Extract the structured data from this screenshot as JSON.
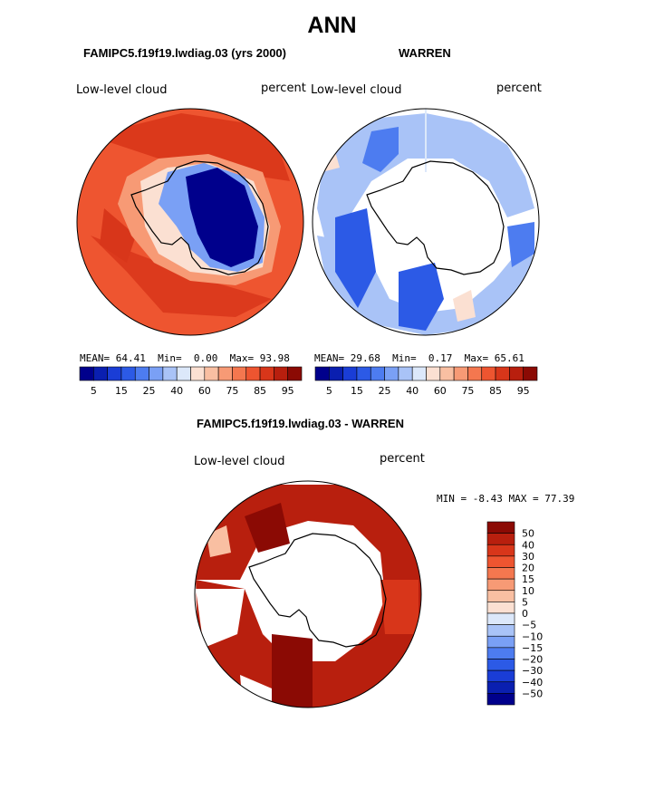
{
  "figure_title": "ANN",
  "chart_data": [
    {
      "type": "heatmap",
      "title": "FAMIPC5.f19f19.lwdiag.03 (yrs 2000)",
      "variable_label": "Low-level cloud",
      "units_label": "percent",
      "stats": {
        "mean_label": "MEAN=",
        "mean": "64.41",
        "min_label": "Min=",
        "min": "0.00",
        "max_label": "Max=",
        "max": "93.98"
      },
      "colorbar_levels": [
        5,
        10,
        15,
        20,
        25,
        30,
        40,
        50,
        60,
        65,
        75,
        80,
        85,
        90,
        95
      ],
      "colorbar_ticks": [
        "5",
        "15",
        "25",
        "40",
        "60",
        "75",
        "85",
        "95"
      ],
      "projection": "south polar stereographic"
    },
    {
      "type": "heatmap",
      "title": "WARREN",
      "variable_label": "Low-level cloud",
      "units_label": "percent",
      "stats": {
        "mean_label": "MEAN=",
        "mean": "29.68",
        "min_label": "Min=",
        "min": "0.17",
        "max_label": "Max=",
        "max": "65.61"
      },
      "colorbar_levels": [
        5,
        10,
        15,
        20,
        25,
        30,
        40,
        50,
        60,
        65,
        75,
        80,
        85,
        90,
        95
      ],
      "colorbar_ticks": [
        "5",
        "15",
        "25",
        "40",
        "60",
        "75",
        "85",
        "95"
      ],
      "projection": "south polar stereographic"
    },
    {
      "type": "heatmap",
      "title": "FAMIPC5.f19f19.lwdiag.03 - WARREN",
      "variable_label": "Low-level cloud",
      "units_label": "percent",
      "stats": {
        "min_label": "MIN =",
        "min": "-8.43",
        "max_label": "MAX =",
        "max": "77.39"
      },
      "colorbar_levels": [
        50,
        40,
        30,
        20,
        15,
        10,
        5,
        0,
        -5,
        -10,
        -15,
        -20,
        -30,
        -40,
        -50
      ],
      "colorbar_ticks": [
        "50",
        "40",
        "30",
        "20",
        "15",
        "10",
        "5",
        "0",
        "−5",
        "−10",
        "−15",
        "−20",
        "−30",
        "−40",
        "−50"
      ],
      "projection": "south polar stereographic"
    }
  ],
  "colors": {
    "scale": [
      "#00008c",
      "#0a1fb0",
      "#1a3dd6",
      "#2c5ae6",
      "#4d7cf0",
      "#7aa0f5",
      "#a9c3f7",
      "#dce8fa",
      "#fbe0d2",
      "#f9bfa2",
      "#f79a75",
      "#f4774f",
      "#ee5530",
      "#d8361a",
      "#b81f0e",
      "#8b0a04"
    ],
    "land": "#ffffff",
    "outline": "#000000"
  }
}
